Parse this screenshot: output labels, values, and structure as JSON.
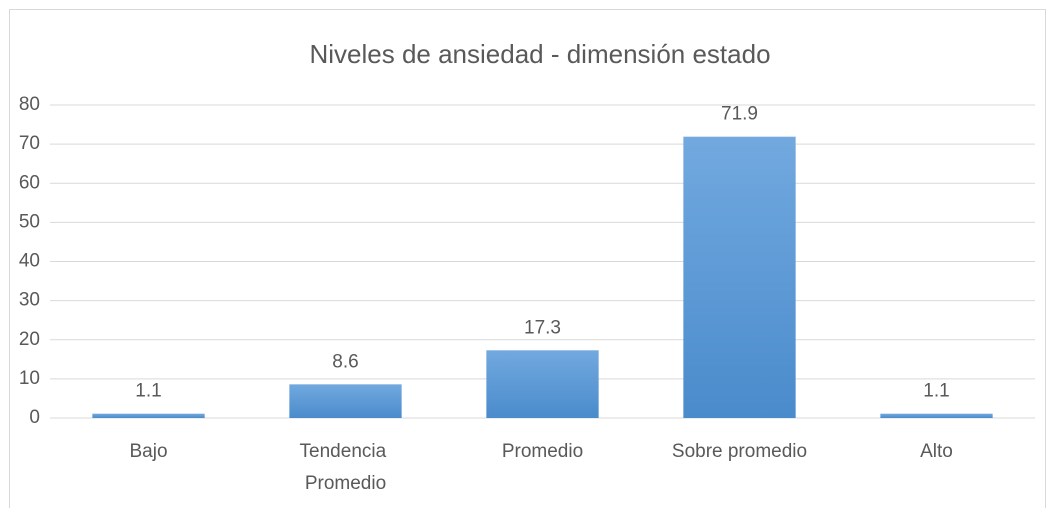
{
  "chart_data": {
    "type": "bar",
    "title": "Niveles de ansiedad - dimensión estado",
    "categories": [
      "Bajo",
      "Tendencia Promedio",
      "Promedio",
      "Sobre promedio",
      "Alto"
    ],
    "values": [
      1.1,
      8.6,
      17.3,
      71.9,
      1.1
    ],
    "color": "#5b9bd5",
    "ylim": [
      0,
      80
    ],
    "yticks": [
      0,
      10,
      20,
      30,
      40,
      50,
      60,
      70,
      80
    ],
    "grid": true
  }
}
